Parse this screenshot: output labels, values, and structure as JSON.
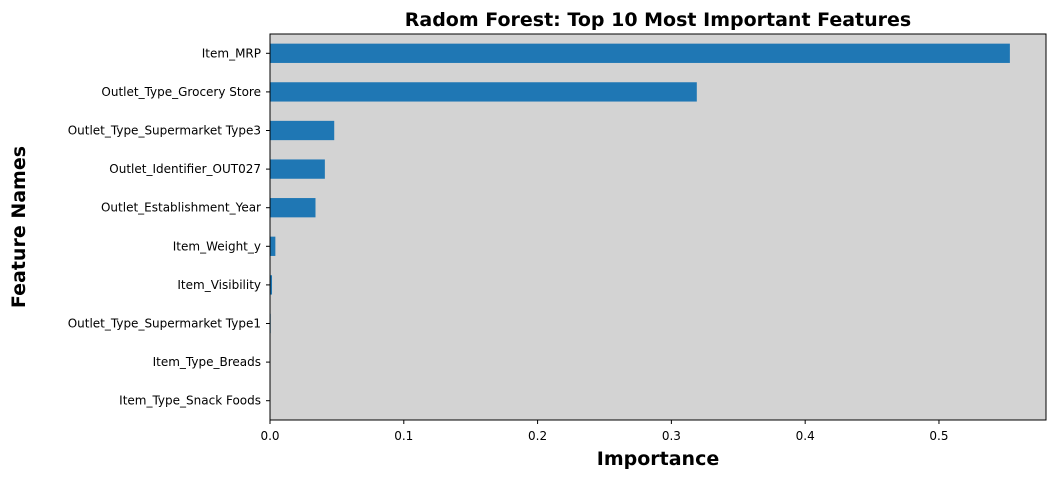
{
  "chart_data": {
    "type": "bar",
    "orientation": "horizontal",
    "title": "Radom Forest: Top 10 Most Important Features",
    "xlabel": "Importance",
    "ylabel": "Feature Names",
    "categories": [
      "Item_MRP",
      "Outlet_Type_Grocery Store",
      "Outlet_Type_Supermarket Type3",
      "Outlet_Identifier_OUT027",
      "Outlet_Establishment_Year",
      "Item_Weight_y",
      "Item_Visibility",
      "Outlet_Type_Supermarket Type1",
      "Item_Type_Breads",
      "Item_Type_Snack Foods"
    ],
    "values": [
      0.553,
      0.319,
      0.048,
      0.041,
      0.034,
      0.004,
      0.0015,
      0.0005,
      0.0003,
      0.0002
    ],
    "xlim": [
      0,
      0.58
    ],
    "xticks": [
      "0.0",
      "0.1",
      "0.2",
      "0.3",
      "0.4",
      "0.5"
    ],
    "grid": false,
    "colors": {
      "bar": "#1f77b4",
      "plot_background": "#d3d3d3",
      "spine": "#000000"
    }
  }
}
